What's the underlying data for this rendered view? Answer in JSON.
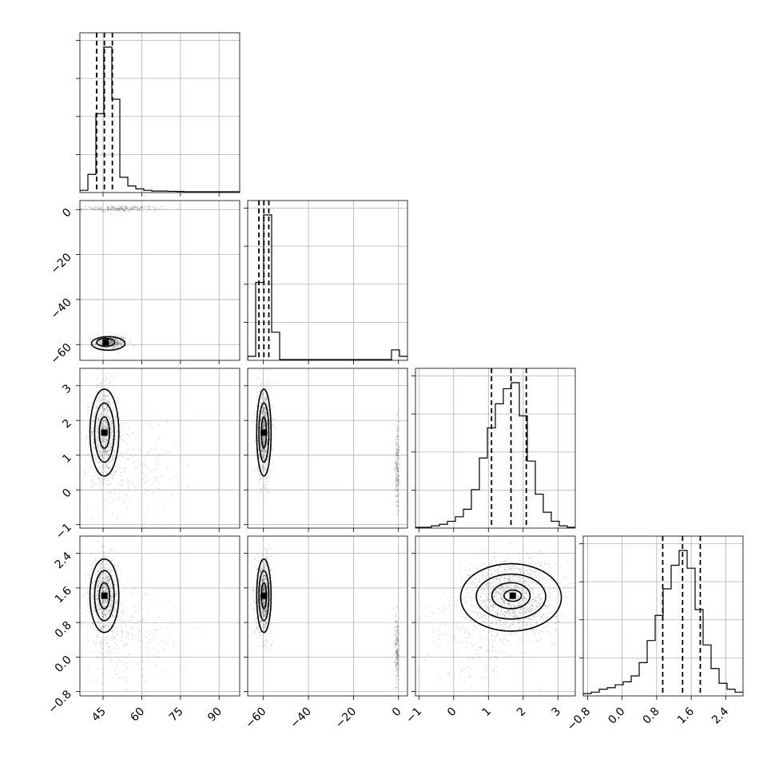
{
  "chart_data": {
    "type": "corner",
    "title": "",
    "parameters": [
      {
        "label": "",
        "range": [
          36,
          98
        ],
        "ticks": [
          45,
          60,
          75,
          90
        ],
        "tick_labels": [
          "45",
          "60",
          "75",
          "90"
        ]
      },
      {
        "label": "",
        "range": [
          -67,
          4
        ],
        "ticks": [
          -60,
          -40,
          -20,
          0
        ],
        "tick_labels": [
          "−60",
          "−40",
          "−20",
          "0"
        ]
      },
      {
        "label": "",
        "range": [
          -1.1,
          3.5
        ],
        "ticks": [
          -1,
          0,
          1,
          2,
          3
        ],
        "tick_labels": [
          "−1",
          "0",
          "1",
          "2",
          "3"
        ]
      },
      {
        "label": "",
        "range": [
          -0.9,
          2.8
        ],
        "ticks": [
          -0.8,
          0.0,
          0.8,
          1.6,
          2.4
        ],
        "tick_labels": [
          "−0.8",
          "0.0",
          "0.8",
          "1.6",
          "2.4"
        ]
      }
    ],
    "histograms": [
      {
        "param": 0,
        "bin_edges": [
          36,
          39.1,
          42.2,
          45.3,
          48.4,
          51.5,
          54.6,
          57.7,
          60.8,
          63.9,
          67,
          70.1,
          73.2,
          76.3,
          79.4,
          82.5,
          85.6,
          88.7,
          91.8,
          94.9,
          98
        ],
        "counts": [
          1,
          12,
          54,
          100,
          64,
          10,
          4,
          2,
          1,
          0.5,
          0.5,
          0.3,
          0.2,
          0,
          0,
          0,
          0,
          0,
          0,
          0
        ],
        "quantiles": [
          42.5,
          45.5,
          48.6
        ]
      },
      {
        "param": 1,
        "bin_edges": [
          -67,
          -63.45,
          -59.9,
          -56.35,
          -52.8,
          -49.25,
          -45.7,
          -42.15,
          -38.6,
          -35.05,
          -31.5,
          -27.95,
          -24.4,
          -20.85,
          -17.3,
          -13.75,
          -10.2,
          -6.65,
          -3.1,
          0.45,
          4
        ],
        "counts": [
          2,
          48,
          90,
          17,
          0,
          0,
          0,
          0,
          0,
          0,
          0,
          0,
          0,
          0,
          0,
          0,
          0,
          0,
          6,
          2
        ],
        "quantiles": [
          -62.0,
          -59.8,
          -57.6
        ]
      },
      {
        "param": 2,
        "bin_edges": [
          -1.1,
          -0.87,
          -0.64,
          -0.41,
          -0.18,
          0.05,
          0.28,
          0.51,
          0.74,
          0.97,
          1.2,
          1.43,
          1.66,
          1.89,
          2.12,
          2.35,
          2.58,
          2.81,
          3.04,
          3.27,
          3.5
        ],
        "counts": [
          0,
          0,
          1,
          2,
          4,
          7,
          12,
          25,
          46,
          66,
          82,
          92,
          96,
          74,
          44,
          22,
          10,
          4,
          1,
          0
        ],
        "quantiles": [
          1.09,
          1.65,
          2.09
        ]
      },
      {
        "param": 3,
        "bin_edges": [
          -0.9,
          -0.715,
          -0.53,
          -0.345,
          -0.16,
          0.025,
          0.21,
          0.395,
          0.58,
          0.765,
          0.95,
          1.135,
          1.32,
          1.505,
          1.69,
          1.875,
          2.06,
          2.245,
          2.43,
          2.615,
          2.8
        ],
        "counts": [
          1,
          2,
          4,
          5,
          7,
          9,
          13,
          22,
          37,
          54,
          72,
          88,
          98,
          86,
          58,
          34,
          18,
          8,
          4,
          2
        ],
        "quantiles": [
          0.94,
          1.4,
          1.81
        ]
      }
    ],
    "scatter_panels": [
      {
        "row": 1,
        "col": 0,
        "clusters": [
          {
            "n": 420,
            "cx": 48,
            "cy": -59,
            "sx": 3.2,
            "sy": 1.6,
            "r": 0
          },
          {
            "n": 260,
            "cx": 52,
            "cy": 0.4,
            "sx": 7.5,
            "sy": 0.6,
            "r": 0
          }
        ],
        "contours": [
          {
            "cx": 46,
            "cy": -59,
            "rx": 3.5,
            "ry": 1.8
          },
          {
            "cx": 47,
            "cy": -59.5,
            "rx": 6.5,
            "ry": 3.0
          }
        ]
      },
      {
        "row": 2,
        "col": 0,
        "clusters": [
          {
            "n": 900,
            "cx": 45.5,
            "cy": 1.65,
            "sx": 2.6,
            "sy": 0.65,
            "r": 0
          },
          {
            "n": 180,
            "cx": 55,
            "cy": 0.7,
            "sx": 9,
            "sy": 0.7,
            "r": 0
          }
        ],
        "contours": [
          {
            "cx": 45.5,
            "cy": 1.65,
            "rx": 2.0,
            "ry": 0.45
          },
          {
            "cx": 45.5,
            "cy": 1.65,
            "rx": 3.8,
            "ry": 0.85
          },
          {
            "cx": 45.5,
            "cy": 1.65,
            "rx": 5.6,
            "ry": 1.25
          }
        ]
      },
      {
        "row": 2,
        "col": 1,
        "clusters": [
          {
            "n": 900,
            "cx": -59.8,
            "cy": 1.65,
            "sx": 1.6,
            "sy": 0.65,
            "r": 0
          },
          {
            "n": 220,
            "cx": -0.6,
            "cy": 0.6,
            "sx": 0.5,
            "sy": 0.6,
            "r": 0
          }
        ],
        "contours": [
          {
            "cx": -59.8,
            "cy": 1.65,
            "rx": 1.1,
            "ry": 0.45
          },
          {
            "cx": -59.8,
            "cy": 1.65,
            "rx": 2.2,
            "ry": 0.85
          },
          {
            "cx": -59.8,
            "cy": 1.65,
            "rx": 3.2,
            "ry": 1.25
          }
        ]
      },
      {
        "row": 3,
        "col": 0,
        "clusters": [
          {
            "n": 900,
            "cx": 45.5,
            "cy": 1.42,
            "sx": 2.6,
            "sy": 0.42,
            "r": 0
          },
          {
            "n": 200,
            "cx": 54,
            "cy": 0.4,
            "sx": 9,
            "sy": 0.5,
            "r": 0
          }
        ],
        "contours": [
          {
            "cx": 45.5,
            "cy": 1.42,
            "rx": 2.0,
            "ry": 0.3
          },
          {
            "cx": 45.5,
            "cy": 1.42,
            "rx": 3.8,
            "ry": 0.58
          },
          {
            "cx": 45.5,
            "cy": 1.42,
            "rx": 5.6,
            "ry": 0.85
          }
        ]
      },
      {
        "row": 3,
        "col": 1,
        "clusters": [
          {
            "n": 900,
            "cx": -59.8,
            "cy": 1.42,
            "sx": 1.6,
            "sy": 0.42,
            "r": 0
          },
          {
            "n": 220,
            "cx": -0.6,
            "cy": 0.15,
            "sx": 0.5,
            "sy": 0.45,
            "r": 0
          }
        ],
        "contours": [
          {
            "cx": -59.8,
            "cy": 1.42,
            "rx": 1.1,
            "ry": 0.3
          },
          {
            "cx": -59.8,
            "cy": 1.42,
            "rx": 2.2,
            "ry": 0.58
          },
          {
            "cx": -59.8,
            "cy": 1.42,
            "rx": 3.2,
            "ry": 0.85
          }
        ]
      },
      {
        "row": 3,
        "col": 2,
        "clusters": [
          {
            "n": 1200,
            "cx": 1.65,
            "cy": 1.38,
            "sx": 0.6,
            "sy": 0.45,
            "r": 0
          },
          {
            "n": 150,
            "cx": 0.4,
            "cy": 0.5,
            "sx": 0.8,
            "sy": 0.6,
            "r": 0
          }
        ],
        "contours": [
          {
            "cx": 1.7,
            "cy": 1.42,
            "rx": 0.25,
            "ry": 0.13
          },
          {
            "cx": 1.65,
            "cy": 1.42,
            "rx": 0.55,
            "ry": 0.3
          },
          {
            "cx": 1.65,
            "cy": 1.4,
            "rx": 1.0,
            "ry": 0.52
          },
          {
            "cx": 1.65,
            "cy": 1.38,
            "rx": 1.45,
            "ry": 0.78
          }
        ]
      }
    ]
  }
}
